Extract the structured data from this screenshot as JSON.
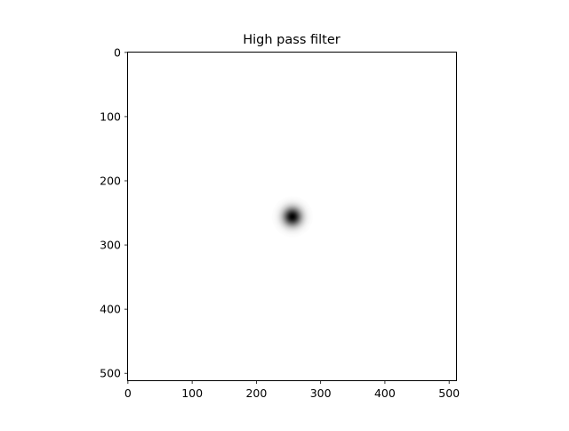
{
  "chart_data": {
    "type": "heatmap",
    "title": "High pass filter",
    "colormap": "gray",
    "image_size": [
      512,
      512
    ],
    "xlim": [
      -0.5,
      511.5
    ],
    "ylim": [
      511.5,
      -0.5
    ],
    "x_ticks": [
      0,
      100,
      200,
      300,
      400,
      500
    ],
    "y_ticks": [
      0,
      100,
      200,
      300,
      400,
      500
    ],
    "x_tick_labels": [
      "0",
      "100",
      "200",
      "300",
      "400",
      "500"
    ],
    "y_tick_labels": [
      "0",
      "100",
      "200",
      "300",
      "400",
      "500"
    ],
    "filter": {
      "kind": "gaussian-high-pass",
      "center": [
        256,
        256
      ],
      "sigma": 10,
      "center_value": 0,
      "background_value": 1
    }
  }
}
